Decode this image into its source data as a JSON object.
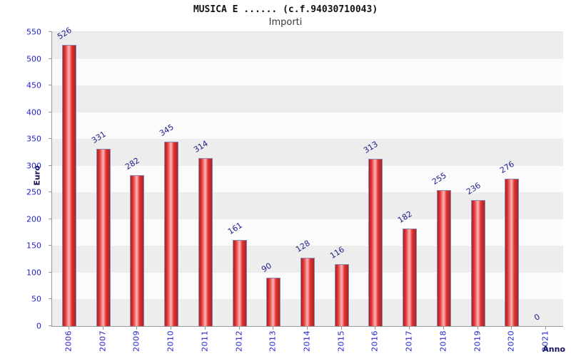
{
  "header": {
    "title": "MUSICA E ...... (c.f.94030710043)",
    "subtitle": "Importi"
  },
  "chart_data": {
    "type": "bar",
    "categories": [
      "2006",
      "2007",
      "2009",
      "2010",
      "2011",
      "2012",
      "2013",
      "2014",
      "2015",
      "2016",
      "2017",
      "2018",
      "2019",
      "2020",
      "2021"
    ],
    "values": [
      526,
      331,
      282,
      345,
      314,
      161,
      90,
      128,
      116,
      313,
      182,
      255,
      236,
      276,
      0
    ],
    "title": "MUSICA E ...... (c.f.94030710043)",
    "subtitle": "Importi",
    "xlabel": "Anno",
    "ylabel": "Euro",
    "ylim": [
      0,
      550
    ],
    "ytick_step": 50,
    "legend": "none",
    "grid": "horizontal-bands",
    "colors": {
      "bar_fill": "#e03131",
      "bar_highlight": "#ffb6b6",
      "bar_dark": "#a82525",
      "bar_edge": "#8a8ab0",
      "tick_label": "#2424c8",
      "value_label": "#1a1a8c",
      "axis_title": "#14145a",
      "band_gray": "#ededed",
      "band_white": "#fbfbfb",
      "axis_line": "#9a9a9a"
    }
  }
}
